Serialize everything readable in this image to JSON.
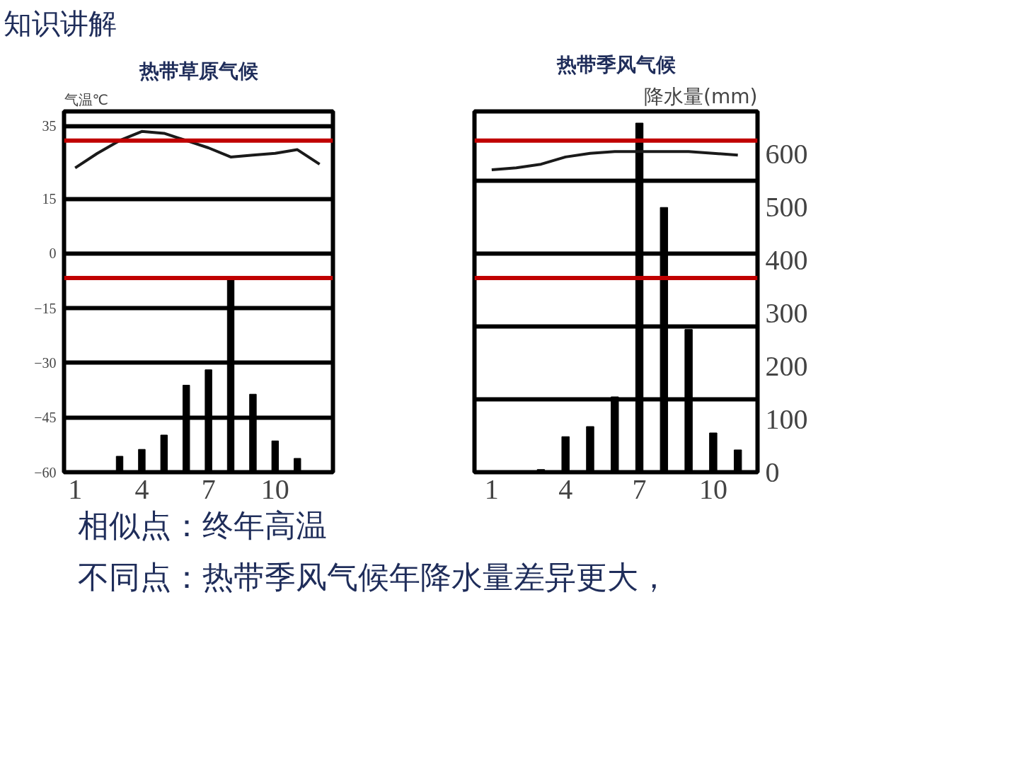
{
  "chart_data": [
    {
      "type": "bar",
      "title": "热带草原气候",
      "ylabel": "气温℃",
      "annotations": [
        "知识讲解"
      ],
      "x": [
        1,
        2,
        3,
        4,
        5,
        6,
        7,
        8,
        9,
        10,
        11,
        12
      ],
      "xlim": [
        0.5,
        12.6
      ],
      "xticks": [
        1,
        4,
        7,
        10
      ],
      "ylim": [
        -60,
        39
      ],
      "yticks": [
        -60,
        -45,
        -30,
        -15,
        0,
        15,
        35
      ],
      "y2lim": [
        0,
        680
      ],
      "series": [
        {
          "axis": "y2",
          "color": "#000000",
          "values": [
            2,
            0,
            30,
            43,
            70,
            164,
            193,
            362,
            147,
            59,
            26,
            0
          ]
        },
        {
          "type": "line",
          "axis": "y",
          "color": "#1a1a1a",
          "values": [
            23.5,
            27.5,
            31,
            33.5,
            33,
            31,
            29,
            26.5,
            27,
            27.5,
            28.5,
            24.5
          ]
        }
      ],
      "ref_lines": [
        {
          "axis": "y",
          "value": 31,
          "color": "#c00000"
        },
        {
          "axis": "y2",
          "value": 366,
          "color": "#c00000"
        }
      ],
      "grid": "y",
      "tick_labels": [
        "x",
        "y"
      ]
    },
    {
      "type": "bar",
      "title": "热带季风气候",
      "y2label": "降水量(mm)",
      "annotations": [
        "相似点：终年高温",
        "不同点：热带季风气候年降水量差异更大，"
      ],
      "x": [
        1,
        2,
        3,
        4,
        5,
        6,
        7,
        8,
        9,
        10,
        11
      ],
      "xlim": [
        0.3,
        11.8
      ],
      "xticks": [
        1,
        4,
        7,
        10
      ],
      "ylim": [
        -60,
        39
      ],
      "y2lim": [
        0,
        680
      ],
      "y2ticks": [
        0,
        100,
        200,
        300,
        400,
        500,
        600
      ],
      "series": [
        {
          "axis": "y2",
          "color": "#000000",
          "values": [
            0,
            0,
            5,
            67,
            86,
            142,
            658,
            499,
            269,
            74,
            42
          ]
        },
        {
          "type": "line",
          "axis": "y",
          "color": "#1a1a1a",
          "values": [
            23,
            23.5,
            24.5,
            26.5,
            27.5,
            28,
            28,
            28,
            28,
            27.5,
            27
          ]
        }
      ],
      "ref_lines": [
        {
          "axis": "y",
          "value": 31,
          "color": "#c00000"
        },
        {
          "axis": "y2",
          "value": 366,
          "color": "#c00000"
        }
      ],
      "grid": "y",
      "tick_labels": [
        "x",
        "y2"
      ]
    }
  ]
}
